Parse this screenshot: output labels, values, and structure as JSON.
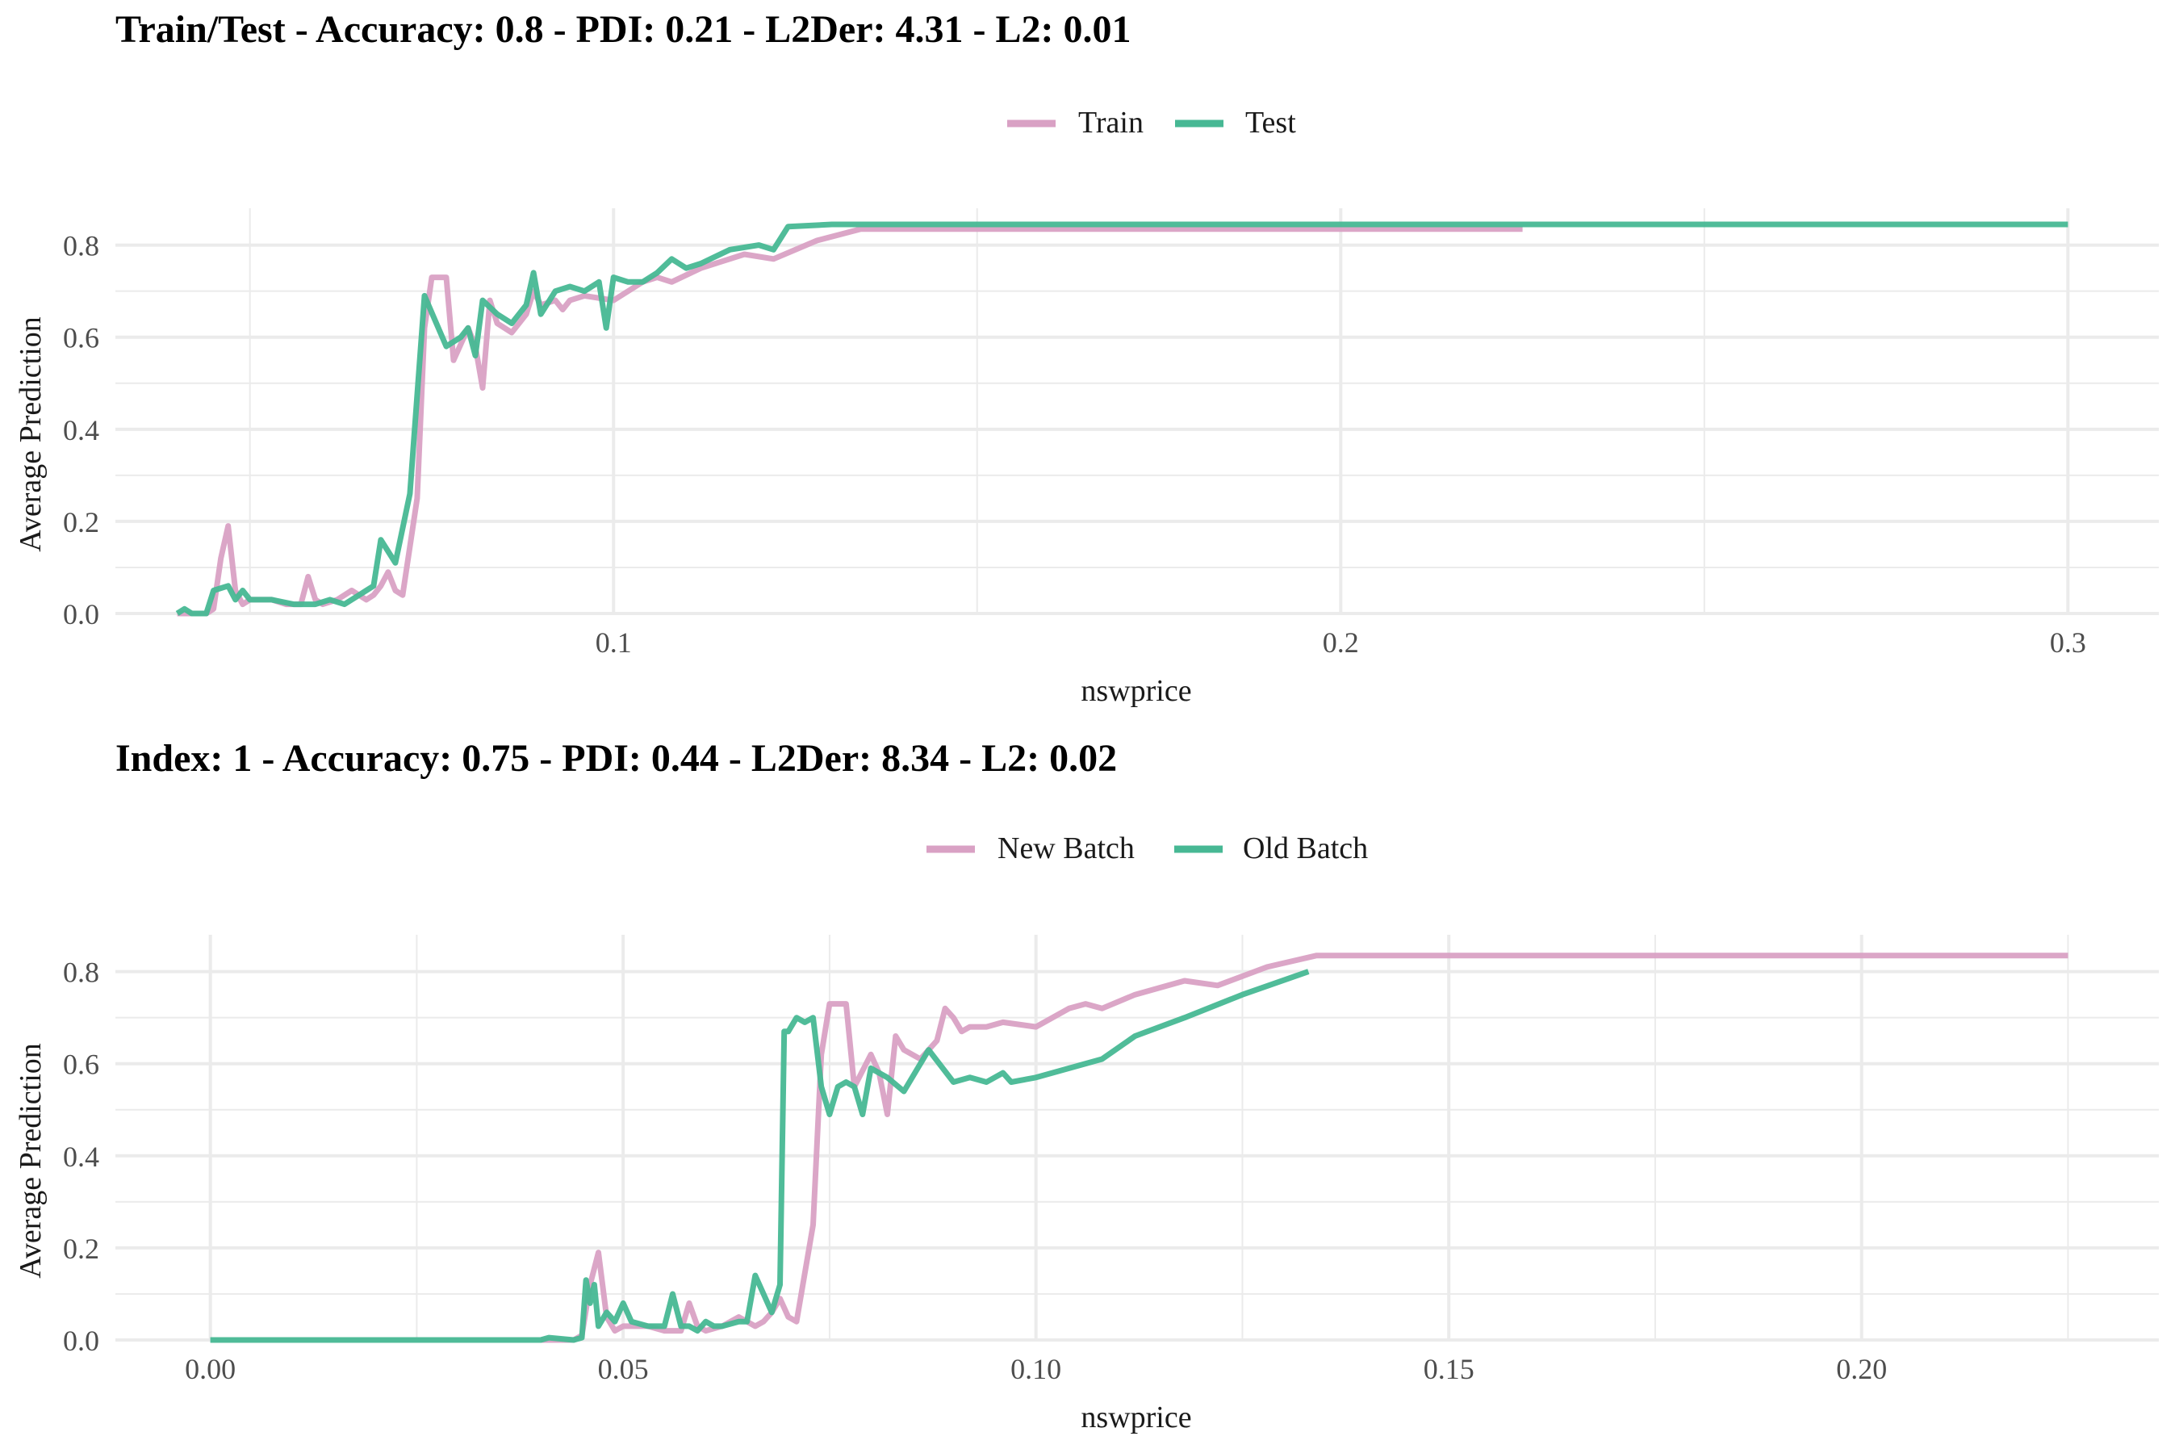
{
  "colors": {
    "pink": "#D9A1C4",
    "green": "#47B894",
    "grid": "#EBEBEB",
    "text": "#4D4D4D"
  },
  "chart_data": [
    {
      "type": "line",
      "title": "Train/Test - Accuracy: 0.8 - PDI: 0.21 - L2Der: 4.31 - L2: 0.01",
      "xlabel": "nswprice",
      "ylabel": "Average Prediction",
      "xlim": [
        0.0315,
        0.3125
      ],
      "ylim": [
        -0.0,
        0.88
      ],
      "xticks": [
        0.1,
        0.2,
        0.3
      ],
      "xtick_labels": [
        "0.1",
        "0.2",
        "0.3"
      ],
      "yticks": [
        0.0,
        0.2,
        0.4,
        0.6,
        0.8
      ],
      "ytick_labels": [
        "0.0",
        "0.2",
        "0.4",
        "0.6",
        "0.8"
      ],
      "legend_position": "top",
      "grid": true,
      "series": [
        {
          "name": "Train",
          "color": "#D9A1C4",
          "points": [
            [
              0.04,
              0.0
            ],
            [
              0.044,
              0.0
            ],
            [
              0.045,
              0.01
            ],
            [
              0.046,
              0.12
            ],
            [
              0.047,
              0.19
            ],
            [
              0.048,
              0.05
            ],
            [
              0.049,
              0.02
            ],
            [
              0.05,
              0.03
            ],
            [
              0.053,
              0.03
            ],
            [
              0.055,
              0.02
            ],
            [
              0.057,
              0.02
            ],
            [
              0.058,
              0.08
            ],
            [
              0.059,
              0.03
            ],
            [
              0.06,
              0.02
            ],
            [
              0.062,
              0.03
            ],
            [
              0.064,
              0.05
            ],
            [
              0.066,
              0.03
            ],
            [
              0.067,
              0.04
            ],
            [
              0.068,
              0.06
            ],
            [
              0.069,
              0.09
            ],
            [
              0.07,
              0.05
            ],
            [
              0.071,
              0.04
            ],
            [
              0.073,
              0.25
            ],
            [
              0.074,
              0.62
            ],
            [
              0.075,
              0.73
            ],
            [
              0.077,
              0.73
            ],
            [
              0.078,
              0.55
            ],
            [
              0.08,
              0.62
            ],
            [
              0.081,
              0.58
            ],
            [
              0.082,
              0.49
            ],
            [
              0.083,
              0.68
            ],
            [
              0.084,
              0.63
            ],
            [
              0.086,
              0.61
            ],
            [
              0.088,
              0.65
            ],
            [
              0.089,
              0.7
            ],
            [
              0.09,
              0.67
            ],
            [
              0.092,
              0.68
            ],
            [
              0.093,
              0.66
            ],
            [
              0.094,
              0.68
            ],
            [
              0.096,
              0.69
            ],
            [
              0.1,
              0.68
            ],
            [
              0.104,
              0.72
            ],
            [
              0.106,
              0.73
            ],
            [
              0.108,
              0.72
            ],
            [
              0.112,
              0.75
            ],
            [
              0.118,
              0.78
            ],
            [
              0.122,
              0.77
            ],
            [
              0.128,
              0.81
            ],
            [
              0.134,
              0.835
            ],
            [
              0.15,
              0.835
            ],
            [
              0.225,
              0.835
            ]
          ]
        },
        {
          "name": "Test",
          "color": "#47B894",
          "points": [
            [
              0.04,
              0.0
            ],
            [
              0.041,
              0.01
            ],
            [
              0.042,
              0.0
            ],
            [
              0.044,
              0.0
            ],
            [
              0.045,
              0.05
            ],
            [
              0.047,
              0.06
            ],
            [
              0.048,
              0.03
            ],
            [
              0.049,
              0.05
            ],
            [
              0.05,
              0.03
            ],
            [
              0.053,
              0.03
            ],
            [
              0.056,
              0.02
            ],
            [
              0.059,
              0.02
            ],
            [
              0.061,
              0.03
            ],
            [
              0.063,
              0.02
            ],
            [
              0.065,
              0.04
            ],
            [
              0.066,
              0.05
            ],
            [
              0.067,
              0.06
            ],
            [
              0.068,
              0.16
            ],
            [
              0.07,
              0.11
            ],
            [
              0.072,
              0.26
            ],
            [
              0.074,
              0.69
            ],
            [
              0.077,
              0.58
            ],
            [
              0.079,
              0.6
            ],
            [
              0.08,
              0.62
            ],
            [
              0.081,
              0.56
            ],
            [
              0.082,
              0.68
            ],
            [
              0.084,
              0.65
            ],
            [
              0.086,
              0.63
            ],
            [
              0.088,
              0.67
            ],
            [
              0.089,
              0.74
            ],
            [
              0.09,
              0.65
            ],
            [
              0.092,
              0.7
            ],
            [
              0.094,
              0.71
            ],
            [
              0.096,
              0.7
            ],
            [
              0.098,
              0.72
            ],
            [
              0.099,
              0.62
            ],
            [
              0.1,
              0.73
            ],
            [
              0.102,
              0.72
            ],
            [
              0.104,
              0.72
            ],
            [
              0.106,
              0.74
            ],
            [
              0.108,
              0.77
            ],
            [
              0.11,
              0.75
            ],
            [
              0.112,
              0.76
            ],
            [
              0.116,
              0.79
            ],
            [
              0.12,
              0.8
            ],
            [
              0.122,
              0.79
            ],
            [
              0.124,
              0.84
            ],
            [
              0.13,
              0.845
            ],
            [
              0.3,
              0.845
            ]
          ]
        }
      ]
    },
    {
      "type": "line",
      "title": "Index: 1 - Accuracy: 0.75 - PDI: 0.44 - L2Der: 8.34 - L2: 0.02",
      "xlabel": "nswprice",
      "ylabel": "Average Prediction",
      "xlim": [
        -0.0115,
        0.236
      ],
      "ylim": [
        -0.0,
        0.88
      ],
      "xticks": [
        0.0,
        0.05,
        0.1,
        0.15,
        0.2
      ],
      "xtick_labels": [
        "0.00",
        "0.05",
        "0.10",
        "0.15",
        "0.20"
      ],
      "yticks": [
        0.0,
        0.2,
        0.4,
        0.6,
        0.8
      ],
      "ytick_labels": [
        "0.0",
        "0.2",
        "0.4",
        "0.6",
        "0.8"
      ],
      "legend_position": "top",
      "grid": true,
      "series": [
        {
          "name": "New Batch",
          "color": "#D9A1C4",
          "points": [
            [
              0.04,
              0.0
            ],
            [
              0.044,
              0.0
            ],
            [
              0.045,
              0.01
            ],
            [
              0.046,
              0.12
            ],
            [
              0.047,
              0.19
            ],
            [
              0.048,
              0.05
            ],
            [
              0.049,
              0.02
            ],
            [
              0.05,
              0.03
            ],
            [
              0.053,
              0.03
            ],
            [
              0.055,
              0.02
            ],
            [
              0.057,
              0.02
            ],
            [
              0.058,
              0.08
            ],
            [
              0.059,
              0.03
            ],
            [
              0.06,
              0.02
            ],
            [
              0.062,
              0.03
            ],
            [
              0.064,
              0.05
            ],
            [
              0.066,
              0.03
            ],
            [
              0.067,
              0.04
            ],
            [
              0.068,
              0.06
            ],
            [
              0.069,
              0.09
            ],
            [
              0.07,
              0.05
            ],
            [
              0.071,
              0.04
            ],
            [
              0.073,
              0.25
            ],
            [
              0.074,
              0.62
            ],
            [
              0.075,
              0.73
            ],
            [
              0.077,
              0.73
            ],
            [
              0.078,
              0.55
            ],
            [
              0.08,
              0.62
            ],
            [
              0.081,
              0.58
            ],
            [
              0.082,
              0.49
            ],
            [
              0.083,
              0.66
            ],
            [
              0.084,
              0.63
            ],
            [
              0.086,
              0.61
            ],
            [
              0.088,
              0.65
            ],
            [
              0.089,
              0.72
            ],
            [
              0.09,
              0.7
            ],
            [
              0.091,
              0.67
            ],
            [
              0.092,
              0.68
            ],
            [
              0.094,
              0.68
            ],
            [
              0.096,
              0.69
            ],
            [
              0.1,
              0.68
            ],
            [
              0.104,
              0.72
            ],
            [
              0.106,
              0.73
            ],
            [
              0.108,
              0.72
            ],
            [
              0.112,
              0.75
            ],
            [
              0.118,
              0.78
            ],
            [
              0.122,
              0.77
            ],
            [
              0.128,
              0.81
            ],
            [
              0.134,
              0.835
            ],
            [
              0.15,
              0.835
            ],
            [
              0.225,
              0.835
            ]
          ]
        },
        {
          "name": "Old Batch",
          "color": "#47B894",
          "points": [
            [
              0.0,
              0.0
            ],
            [
              0.04,
              0.0
            ],
            [
              0.041,
              0.005
            ],
            [
              0.044,
              0.0
            ],
            [
              0.045,
              0.005
            ],
            [
              0.0455,
              0.13
            ],
            [
              0.046,
              0.08
            ],
            [
              0.0465,
              0.12
            ],
            [
              0.047,
              0.03
            ],
            [
              0.048,
              0.06
            ],
            [
              0.049,
              0.04
            ],
            [
              0.05,
              0.08
            ],
            [
              0.051,
              0.04
            ],
            [
              0.053,
              0.03
            ],
            [
              0.055,
              0.03
            ],
            [
              0.056,
              0.1
            ],
            [
              0.057,
              0.03
            ],
            [
              0.058,
              0.03
            ],
            [
              0.059,
              0.02
            ],
            [
              0.06,
              0.04
            ],
            [
              0.061,
              0.03
            ],
            [
              0.062,
              0.03
            ],
            [
              0.064,
              0.04
            ],
            [
              0.065,
              0.04
            ],
            [
              0.066,
              0.14
            ],
            [
              0.067,
              0.1
            ],
            [
              0.068,
              0.06
            ],
            [
              0.069,
              0.12
            ],
            [
              0.0695,
              0.67
            ],
            [
              0.07,
              0.67
            ],
            [
              0.071,
              0.7
            ],
            [
              0.072,
              0.69
            ],
            [
              0.073,
              0.7
            ],
            [
              0.074,
              0.55
            ],
            [
              0.075,
              0.49
            ],
            [
              0.076,
              0.55
            ],
            [
              0.077,
              0.56
            ],
            [
              0.078,
              0.55
            ],
            [
              0.079,
              0.49
            ],
            [
              0.08,
              0.59
            ],
            [
              0.082,
              0.57
            ],
            [
              0.084,
              0.54
            ],
            [
              0.087,
              0.63
            ],
            [
              0.09,
              0.56
            ],
            [
              0.092,
              0.57
            ],
            [
              0.094,
              0.56
            ],
            [
              0.096,
              0.58
            ],
            [
              0.097,
              0.56
            ],
            [
              0.1,
              0.57
            ],
            [
              0.104,
              0.59
            ],
            [
              0.108,
              0.61
            ],
            [
              0.112,
              0.66
            ],
            [
              0.118,
              0.7
            ],
            [
              0.125,
              0.75
            ],
            [
              0.133,
              0.8
            ]
          ]
        }
      ]
    }
  ]
}
